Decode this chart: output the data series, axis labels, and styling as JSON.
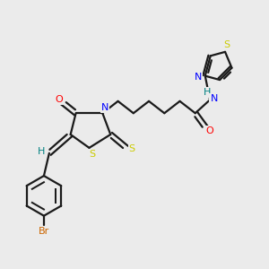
{
  "bg_color": "#ebebeb",
  "bond_color": "#1a1a1a",
  "atom_colors": {
    "N": "#0000ff",
    "O": "#ff0000",
    "S": "#cccc00",
    "Br": "#cc6600",
    "H_label": "#008080",
    "C": "#1a1a1a"
  },
  "line_width": 1.6,
  "fig_size": [
    3.0,
    3.0
  ],
  "dpi": 100
}
